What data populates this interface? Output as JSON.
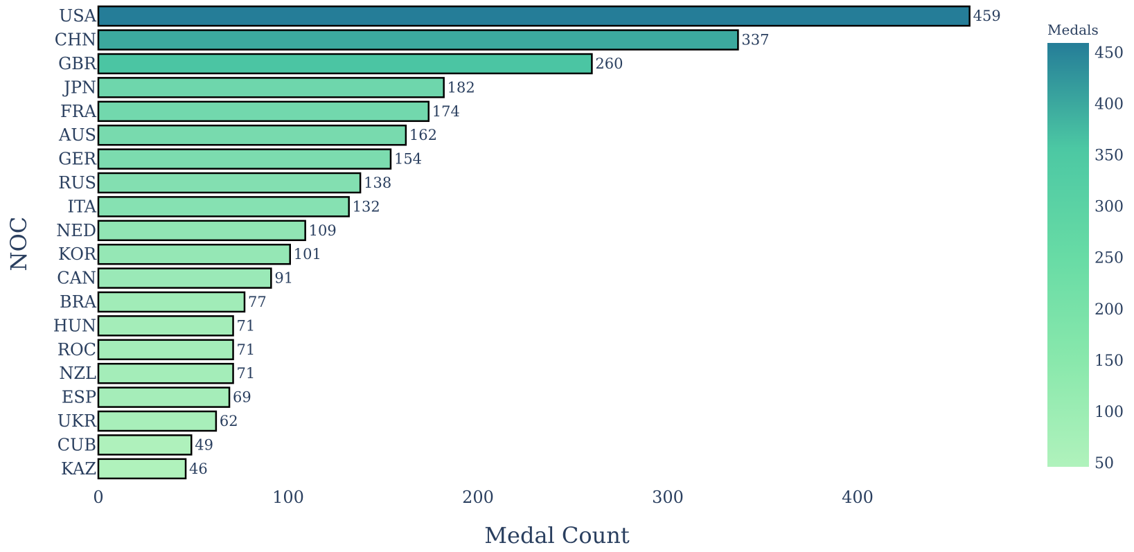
{
  "chart_data": {
    "type": "bar",
    "orientation": "horizontal",
    "xlabel": "Medal Count",
    "ylabel": "NOC",
    "xlim": [
      0,
      480
    ],
    "x_ticks": [
      0,
      100,
      200,
      300,
      400
    ],
    "grid": false,
    "categories": [
      "USA",
      "CHN",
      "GBR",
      "JPN",
      "FRA",
      "AUS",
      "GER",
      "RUS",
      "ITA",
      "NED",
      "KOR",
      "CAN",
      "BRA",
      "HUN",
      "ROC",
      "NZL",
      "ESP",
      "UKR",
      "CUB",
      "KAZ"
    ],
    "values": [
      459,
      337,
      260,
      182,
      174,
      162,
      154,
      138,
      132,
      109,
      101,
      91,
      77,
      71,
      71,
      71,
      69,
      62,
      49,
      46
    ],
    "colorbar": {
      "title": "Medals",
      "placement": "right",
      "range": [
        46,
        459
      ],
      "ticks": [
        50,
        100,
        150,
        200,
        250,
        300,
        350,
        400,
        450
      ]
    },
    "colors": {
      "low": "#b0f2bc",
      "mid": "#4cc8a3",
      "high": "#257d98",
      "bar_outline": "#000000",
      "text": "#2a3f5f"
    }
  }
}
